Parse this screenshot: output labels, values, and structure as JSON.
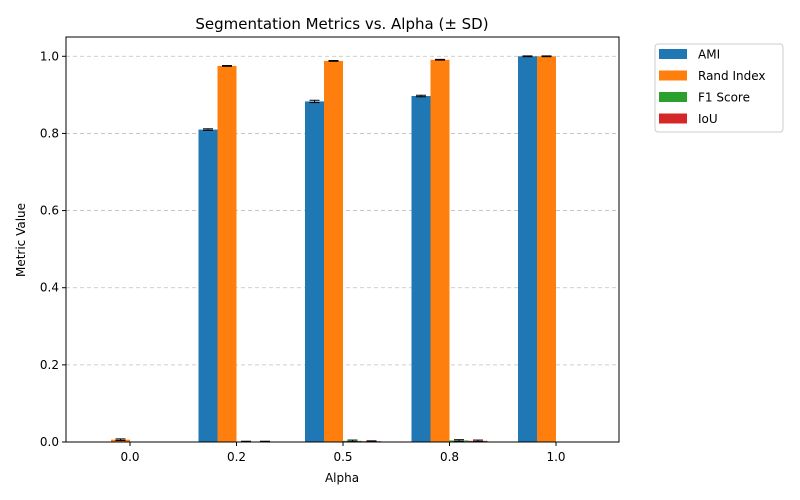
{
  "chart_data": {
    "type": "bar",
    "title": "Segmentation Metrics vs. Alpha (± SD)",
    "xlabel": "Alpha",
    "ylabel": "Metric Value",
    "categories": [
      "0.0",
      "0.2",
      "0.5",
      "0.8",
      "1.0"
    ],
    "ylim": [
      0,
      1.05
    ],
    "yticks": [
      "0.0",
      "0.2",
      "0.4",
      "0.6",
      "0.8",
      "1.0"
    ],
    "grid": "y-dashed",
    "legend_position": "outside-top-right",
    "series": [
      {
        "name": "AMI",
        "color": "#1f77b4",
        "values": [
          0.0,
          0.81,
          0.883,
          0.897,
          1.0
        ],
        "sd": [
          0.0,
          0.002,
          0.003,
          0.002,
          0.001
        ]
      },
      {
        "name": "Rand Index",
        "color": "#ff7f0e",
        "values": [
          0.006,
          0.975,
          0.988,
          0.991,
          1.0
        ],
        "sd": [
          0.002,
          0.001,
          0.001,
          0.001,
          0.001
        ]
      },
      {
        "name": "F1 Score",
        "color": "#2ca02c",
        "values": [
          0.0,
          0.001,
          0.003,
          0.004,
          0.0
        ],
        "sd": [
          0.0,
          0.001,
          0.002,
          0.002,
          0.0
        ]
      },
      {
        "name": "IoU",
        "color": "#d62728",
        "values": [
          0.0,
          0.001,
          0.002,
          0.003,
          0.0
        ],
        "sd": [
          0.0,
          0.001,
          0.001,
          0.002,
          0.0
        ]
      }
    ]
  }
}
